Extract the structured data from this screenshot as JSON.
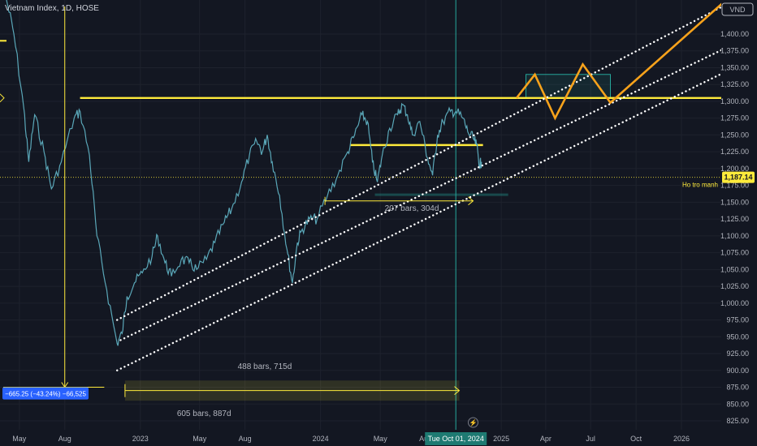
{
  "header": {
    "title": "Vietnam Index, 1D, HOSE"
  },
  "chart_data": {
    "type": "line",
    "symbol": "Vietnam Index",
    "interval": "1D",
    "exchange": "HOSE",
    "currency": "VND",
    "ylim": [
      812,
      1470
    ],
    "y_ticks": [
      1400,
      1375,
      1350,
      1325,
      1300,
      1275,
      1250,
      1225,
      1200,
      1175,
      1150,
      1125,
      1100,
      1075,
      1050,
      1025,
      1000,
      975,
      950,
      925,
      900,
      875,
      850,
      825
    ],
    "y_tick_labels": [
      "1,400.00",
      "1,375.00",
      "1,350.00",
      "1,325.00",
      "1,300.00",
      "1,275.00",
      "1,250.00",
      "1,225.00",
      "1,200.00",
      "1,175.00",
      "1,150.00",
      "1,125.00",
      "1,100.00",
      "1,075.00",
      "1,050.00",
      "1,025.00",
      "1,000.00",
      "975.00",
      "950.00",
      "925.00",
      "900.00",
      "875.00",
      "850.00",
      "825.00"
    ],
    "x_tick_labels": [
      "May",
      "Aug",
      "2023",
      "May",
      "Aug",
      "2024",
      "May",
      "Aug",
      "2025",
      "Apr",
      "Jul",
      "Oct",
      "2026"
    ],
    "x_tick_dates": [
      "2022-05-01",
      "2022-08-01",
      "2023-01-01",
      "2023-05-01",
      "2023-08-01",
      "2024-01-01",
      "2024-05-01",
      "2024-08-01",
      "2025-01-01",
      "2025-04-01",
      "2025-07-01",
      "2025-10-01",
      "2026-01-01"
    ],
    "series": [
      {
        "values": [
          {
            "x": "2022-04-05",
            "y": 1520
          },
          {
            "x": "2022-04-20",
            "y": 1400
          },
          {
            "x": "2022-05-10",
            "y": 1290
          },
          {
            "x": "2022-05-20",
            "y": 1210
          },
          {
            "x": "2022-06-01",
            "y": 1280
          },
          {
            "x": "2022-06-20",
            "y": 1225
          },
          {
            "x": "2022-07-05",
            "y": 1170
          },
          {
            "x": "2022-07-25",
            "y": 1210
          },
          {
            "x": "2022-08-20",
            "y": 1275
          },
          {
            "x": "2022-09-01",
            "y": 1285
          },
          {
            "x": "2022-09-20",
            "y": 1220
          },
          {
            "x": "2022-10-05",
            "y": 1100
          },
          {
            "x": "2022-10-25",
            "y": 1020
          },
          {
            "x": "2022-11-15",
            "y": 940
          },
          {
            "x": "2022-11-25",
            "y": 955
          },
          {
            "x": "2022-12-05",
            "y": 1010
          },
          {
            "x": "2022-12-20",
            "y": 1030
          },
          {
            "x": "2023-01-05",
            "y": 1045
          },
          {
            "x": "2023-01-25",
            "y": 1070
          },
          {
            "x": "2023-02-05",
            "y": 1100
          },
          {
            "x": "2023-02-20",
            "y": 1060
          },
          {
            "x": "2023-03-05",
            "y": 1040
          },
          {
            "x": "2023-03-25",
            "y": 1065
          },
          {
            "x": "2023-04-10",
            "y": 1060
          },
          {
            "x": "2023-04-25",
            "y": 1050
          },
          {
            "x": "2023-05-15",
            "y": 1065
          },
          {
            "x": "2023-06-01",
            "y": 1090
          },
          {
            "x": "2023-06-20",
            "y": 1120
          },
          {
            "x": "2023-07-05",
            "y": 1140
          },
          {
            "x": "2023-07-25",
            "y": 1180
          },
          {
            "x": "2023-08-10",
            "y": 1220
          },
          {
            "x": "2023-08-25",
            "y": 1240
          },
          {
            "x": "2023-09-05",
            "y": 1225
          },
          {
            "x": "2023-09-15",
            "y": 1250
          },
          {
            "x": "2023-09-25",
            "y": 1210
          },
          {
            "x": "2023-10-10",
            "y": 1160
          },
          {
            "x": "2023-10-25",
            "y": 1080
          },
          {
            "x": "2023-11-05",
            "y": 1030
          },
          {
            "x": "2023-11-15",
            "y": 1090
          },
          {
            "x": "2023-11-25",
            "y": 1110
          },
          {
            "x": "2023-12-10",
            "y": 1125
          },
          {
            "x": "2023-12-25",
            "y": 1125
          },
          {
            "x": "2024-01-15",
            "y": 1160
          },
          {
            "x": "2024-02-05",
            "y": 1190
          },
          {
            "x": "2024-02-25",
            "y": 1225
          },
          {
            "x": "2024-03-10",
            "y": 1250
          },
          {
            "x": "2024-03-25",
            "y": 1280
          },
          {
            "x": "2024-04-05",
            "y": 1270
          },
          {
            "x": "2024-04-15",
            "y": 1210
          },
          {
            "x": "2024-04-25",
            "y": 1180
          },
          {
            "x": "2024-05-05",
            "y": 1220
          },
          {
            "x": "2024-05-20",
            "y": 1260
          },
          {
            "x": "2024-06-05",
            "y": 1280
          },
          {
            "x": "2024-06-15",
            "y": 1295
          },
          {
            "x": "2024-06-25",
            "y": 1280
          },
          {
            "x": "2024-07-05",
            "y": 1250
          },
          {
            "x": "2024-07-20",
            "y": 1270
          },
          {
            "x": "2024-08-05",
            "y": 1215
          },
          {
            "x": "2024-08-15",
            "y": 1190
          },
          {
            "x": "2024-08-25",
            "y": 1250
          },
          {
            "x": "2024-09-05",
            "y": 1270
          },
          {
            "x": "2024-09-20",
            "y": 1285
          },
          {
            "x": "2024-10-01",
            "y": 1285
          },
          {
            "x": "2024-10-15",
            "y": 1275
          },
          {
            "x": "2024-10-25",
            "y": 1255
          },
          {
            "x": "2024-11-05",
            "y": 1245
          },
          {
            "x": "2024-11-12",
            "y": 1235
          },
          {
            "x": "2024-11-18",
            "y": 1205
          },
          {
            "x": "2024-11-22",
            "y": 1210
          }
        ]
      }
    ],
    "annotations": {
      "resistance_level": 1305,
      "mid_level": 1235,
      "support_level": 1187.14,
      "support_label": "Ho tro manh",
      "price_label": "1,187.14",
      "lower_box_level": 1163,
      "range_text_1": "207 bars, 304d",
      "range_text_2": "488 bars, 715d",
      "range_text_3": "605 bars, 887d",
      "measure_text": "−665.25 (−43.24%) −66,525",
      "crosshair_date": "Tue Oct 01, 2024",
      "crosshair_date_iso": "2024-10-01",
      "projection_box": {
        "from": "2025-02-20",
        "to": "2025-08-10",
        "low": 1305,
        "high": 1340
      },
      "channel_lines": [
        {
          "from": {
            "x": "2022-11-15",
            "y": 975
          },
          "to": {
            "x": "2026-05-01",
            "y": 1455
          }
        },
        {
          "from": {
            "x": "2022-11-22",
            "y": 945
          },
          "to": {
            "x": "2026-05-01",
            "y": 1390
          }
        },
        {
          "from": {
            "x": "2022-11-15",
            "y": 900
          },
          "to": {
            "x": "2026-05-01",
            "y": 1355
          }
        }
      ],
      "projection_path": [
        {
          "x": "2025-02-01",
          "y": 1305
        },
        {
          "x": "2025-03-10",
          "y": 1340
        },
        {
          "x": "2025-04-20",
          "y": 1275
        },
        {
          "x": "2025-06-15",
          "y": 1355
        },
        {
          "x": "2025-08-10",
          "y": 1298
        },
        {
          "x": "2026-05-01",
          "y": 1470
        }
      ]
    }
  },
  "colors": {
    "background": "#131722",
    "price_line": "#5aa7b8",
    "resistance": "#ffeb3b",
    "projection": "#f7a21b",
    "channel": "#ffffff",
    "crosshair": "#26a69a",
    "box": "#2962ff"
  }
}
